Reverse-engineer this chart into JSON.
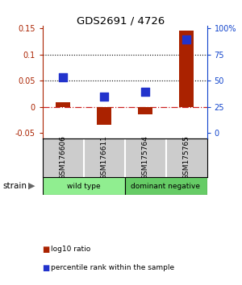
{
  "title": "GDS2691 / 4726",
  "samples": [
    "GSM176606",
    "GSM176611",
    "GSM175764",
    "GSM175765"
  ],
  "log10_ratio": [
    0.008,
    -0.035,
    -0.015,
    0.145
  ],
  "percentile_rank_scaled": [
    0.057,
    0.02,
    0.028,
    0.128
  ],
  "groups": [
    {
      "label": "wild type",
      "samples": [
        0,
        1
      ],
      "color": "#90ee90"
    },
    {
      "label": "dominant negative",
      "samples": [
        2,
        3
      ],
      "color": "#66cc66"
    }
  ],
  "ylim_left": [
    -0.06,
    0.155
  ],
  "ylim_right": [
    -0.06,
    0.155
  ],
  "yticks_left": [
    -0.05,
    0.0,
    0.05,
    0.1,
    0.15
  ],
  "ytick_labels_left": [
    "-0.05",
    "0",
    "0.05",
    "0.1",
    "0.15"
  ],
  "ytick_labels_right": [
    "0",
    "25",
    "50",
    "75",
    "100%"
  ],
  "hlines": [
    0.05,
    0.1
  ],
  "bar_color": "#aa2200",
  "dot_color": "#2233cc",
  "zero_line_color": "#cc2222",
  "bar_width": 0.35,
  "dot_size": 45,
  "left_label_color": "#aa2200",
  "right_label_color": "#1144cc",
  "legend_bar_label": "log10 ratio",
  "legend_dot_label": "percentile rank within the sample",
  "strain_label": "strain",
  "background_color": "#ffffff",
  "plot_bg_color": "#ffffff",
  "sample_box_color": "#cccccc"
}
